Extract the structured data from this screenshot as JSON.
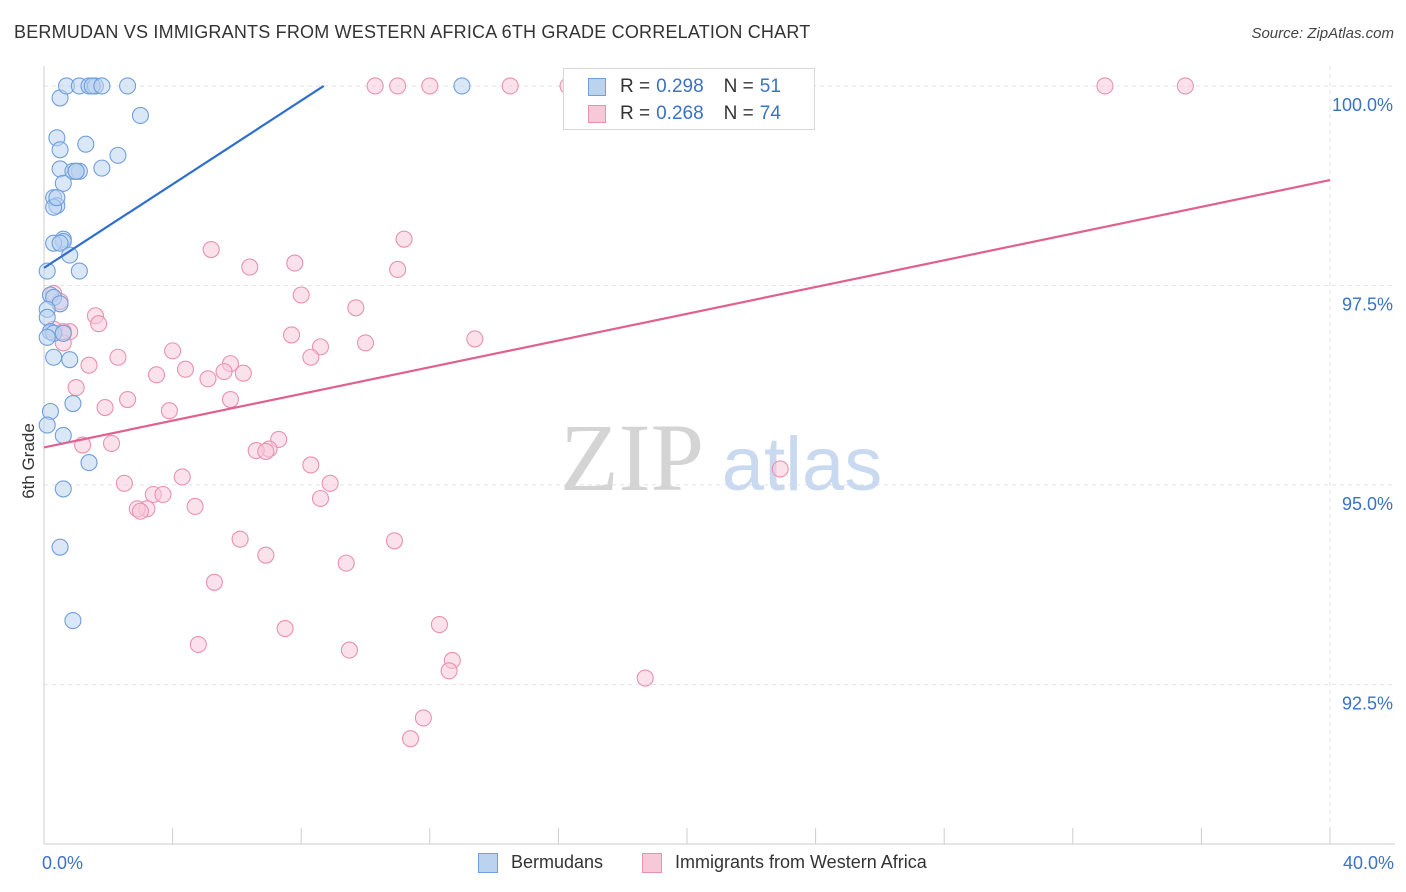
{
  "title": "BERMUDAN VS IMMIGRANTS FROM WESTERN AFRICA 6TH GRADE CORRELATION CHART",
  "source": "Source: ZipAtlas.com",
  "watermark": {
    "zip": "ZIP",
    "atlas": "atlas"
  },
  "legend_top": [
    {
      "r_label": "R =",
      "r_value": "0.298",
      "n_label": "N =",
      "n_value": "51"
    },
    {
      "r_label": "R =",
      "r_value": "0.268",
      "n_label": "N =",
      "n_value": "74"
    }
  ],
  "legend_bottom": [
    "Bermudans",
    "Immigrants from Western Africa"
  ],
  "chart_data": {
    "type": "scatter",
    "title": "BERMUDAN VS IMMIGRANTS FROM WESTERN AFRICA 6TH GRADE CORRELATION CHART",
    "xlabel": "",
    "ylabel": "6th Grade",
    "xlim": [
      0,
      40
    ],
    "ylim": [
      90.5,
      100.25
    ],
    "x_tick_labels": [
      {
        "value": 0,
        "label": "0.0%"
      },
      {
        "value": 40,
        "label": "40.0%"
      }
    ],
    "y_tick_labels": [
      {
        "value": 100.0,
        "label": "100.0%"
      },
      {
        "value": 97.5,
        "label": "97.5%"
      },
      {
        "value": 95.0,
        "label": "95.0%"
      },
      {
        "value": 92.5,
        "label": "92.5%"
      }
    ],
    "grid": true,
    "series": [
      {
        "name": "Bermudans",
        "color": "#6f9fdc",
        "fill": "#bcd3f0",
        "line_color": "#2f6fcc",
        "trend": {
          "x": [
            0.0,
            8.7
          ],
          "y": [
            97.72,
            100.0
          ]
        },
        "points": [
          [
            0.5,
            99.85
          ],
          [
            0.7,
            100.0
          ],
          [
            1.1,
            100.0
          ],
          [
            1.4,
            100.0
          ],
          [
            1.6,
            100.0
          ],
          [
            1.5,
            100.0
          ],
          [
            1.8,
            100.0
          ],
          [
            2.6,
            100.0
          ],
          [
            13.0,
            100.0
          ],
          [
            3.0,
            99.63
          ],
          [
            0.4,
            99.35
          ],
          [
            0.5,
            99.2
          ],
          [
            1.3,
            99.27
          ],
          [
            2.3,
            99.13
          ],
          [
            0.5,
            98.96
          ],
          [
            0.9,
            98.93
          ],
          [
            1.1,
            98.93
          ],
          [
            1.0,
            98.93
          ],
          [
            1.8,
            98.97
          ],
          [
            0.6,
            98.78
          ],
          [
            0.3,
            98.6
          ],
          [
            0.4,
            98.5
          ],
          [
            0.3,
            98.48
          ],
          [
            0.6,
            98.08
          ],
          [
            0.6,
            98.05
          ],
          [
            0.3,
            98.03
          ],
          [
            0.5,
            98.03
          ],
          [
            0.8,
            97.88
          ],
          [
            0.1,
            97.68
          ],
          [
            1.1,
            97.68
          ],
          [
            0.2,
            97.38
          ],
          [
            0.3,
            97.35
          ],
          [
            0.5,
            97.27
          ],
          [
            0.1,
            97.2
          ],
          [
            0.1,
            97.1
          ],
          [
            0.2,
            96.92
          ],
          [
            0.3,
            96.9
          ],
          [
            0.1,
            96.85
          ],
          [
            0.3,
            96.6
          ],
          [
            0.8,
            96.57
          ],
          [
            0.9,
            96.02
          ],
          [
            0.2,
            95.92
          ],
          [
            0.1,
            95.75
          ],
          [
            0.6,
            95.62
          ],
          [
            1.4,
            95.28
          ],
          [
            0.6,
            94.95
          ],
          [
            0.5,
            94.22
          ],
          [
            0.9,
            93.3
          ],
          [
            0.6,
            96.9
          ],
          [
            1.0,
            98.93
          ],
          [
            0.4,
            98.6
          ]
        ]
      },
      {
        "name": "Immigrants from Western Africa",
        "color": "#e992ae",
        "fill": "#f7c9d8",
        "line_color": "#e06090",
        "trend": {
          "x": [
            0.0,
            40.0
          ],
          "y": [
            95.47,
            98.82
          ]
        },
        "points": [
          [
            10.3,
            100.0
          ],
          [
            11.0,
            100.0
          ],
          [
            12.0,
            100.0
          ],
          [
            14.5,
            100.0
          ],
          [
            16.3,
            100.0
          ],
          [
            17.0,
            100.0
          ],
          [
            33.0,
            100.0
          ],
          [
            35.5,
            100.0
          ],
          [
            11.2,
            98.08
          ],
          [
            5.2,
            97.95
          ],
          [
            6.4,
            97.73
          ],
          [
            7.8,
            97.78
          ],
          [
            11.0,
            97.7
          ],
          [
            0.3,
            97.4
          ],
          [
            0.5,
            97.3
          ],
          [
            8.0,
            97.38
          ],
          [
            9.7,
            97.22
          ],
          [
            1.6,
            97.12
          ],
          [
            1.7,
            97.02
          ],
          [
            0.3,
            96.95
          ],
          [
            0.8,
            96.92
          ],
          [
            7.7,
            96.88
          ],
          [
            13.4,
            96.83
          ],
          [
            10.0,
            96.78
          ],
          [
            8.6,
            96.73
          ],
          [
            0.6,
            96.78
          ],
          [
            4.0,
            96.68
          ],
          [
            8.3,
            96.6
          ],
          [
            2.3,
            96.6
          ],
          [
            1.4,
            96.5
          ],
          [
            5.8,
            96.52
          ],
          [
            4.4,
            96.45
          ],
          [
            5.6,
            96.42
          ],
          [
            6.2,
            96.4
          ],
          [
            3.5,
            96.38
          ],
          [
            5.1,
            96.33
          ],
          [
            1.0,
            96.22
          ],
          [
            2.6,
            96.07
          ],
          [
            5.8,
            96.07
          ],
          [
            1.9,
            95.97
          ],
          [
            3.9,
            95.93
          ],
          [
            7.3,
            95.57
          ],
          [
            2.1,
            95.52
          ],
          [
            1.2,
            95.5
          ],
          [
            7.0,
            95.45
          ],
          [
            6.6,
            95.43
          ],
          [
            6.9,
            95.42
          ],
          [
            8.3,
            95.25
          ],
          [
            22.9,
            95.2
          ],
          [
            4.3,
            95.1
          ],
          [
            2.5,
            95.02
          ],
          [
            8.9,
            95.02
          ],
          [
            3.4,
            94.88
          ],
          [
            3.7,
            94.88
          ],
          [
            8.6,
            94.83
          ],
          [
            3.2,
            94.7
          ],
          [
            4.7,
            94.73
          ],
          [
            2.9,
            94.7
          ],
          [
            3.0,
            94.67
          ],
          [
            6.1,
            94.32
          ],
          [
            10.9,
            94.3
          ],
          [
            6.9,
            94.12
          ],
          [
            9.4,
            94.02
          ],
          [
            5.3,
            93.78
          ],
          [
            12.3,
            93.25
          ],
          [
            7.5,
            93.2
          ],
          [
            4.8,
            93.0
          ],
          [
            9.5,
            92.93
          ],
          [
            12.7,
            92.8
          ],
          [
            12.6,
            92.67
          ],
          [
            18.7,
            92.58
          ],
          [
            11.8,
            92.08
          ],
          [
            11.4,
            91.82
          ],
          [
            0.6,
            96.92
          ]
        ]
      }
    ]
  }
}
